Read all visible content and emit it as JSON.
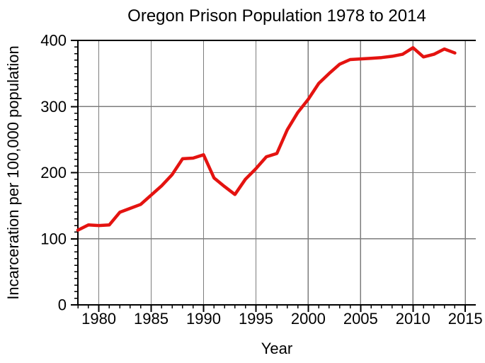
{
  "chart_data": {
    "type": "line",
    "title": "Oregon Prison Population 1978 to 2014",
    "xlabel": "Year",
    "ylabel": "Incarceration per 100,000 population",
    "x": [
      1978,
      1979,
      1980,
      1981,
      1982,
      1983,
      1984,
      1985,
      1986,
      1987,
      1988,
      1989,
      1990,
      1991,
      1992,
      1993,
      1994,
      1995,
      1996,
      1997,
      1998,
      1999,
      2000,
      2001,
      2002,
      2003,
      2004,
      2005,
      2006,
      2007,
      2008,
      2009,
      2010,
      2011,
      2012,
      2013,
      2014
    ],
    "values": [
      113,
      121,
      120,
      121,
      140,
      146,
      152,
      166,
      180,
      197,
      221,
      222,
      227,
      192,
      179,
      167,
      190,
      206,
      224,
      229,
      265,
      291,
      311,
      335,
      350,
      364,
      371,
      372,
      373,
      374,
      376,
      379,
      389,
      375,
      379,
      387,
      381
    ],
    "x_range": [
      1978,
      2016
    ],
    "y_range": [
      0,
      400
    ],
    "x_major_ticks": [
      1980,
      1985,
      1990,
      1995,
      2000,
      2005,
      2010,
      2015
    ],
    "x_minor_step": 1,
    "y_major_ticks": [
      0,
      100,
      200,
      300,
      400
    ],
    "y_minor_step": 10,
    "grid": true,
    "legend": "none",
    "line_color": "#e41310",
    "grid_color": "#7d7d7d",
    "axis_color": "#000000",
    "background_color": "#ffffff"
  }
}
